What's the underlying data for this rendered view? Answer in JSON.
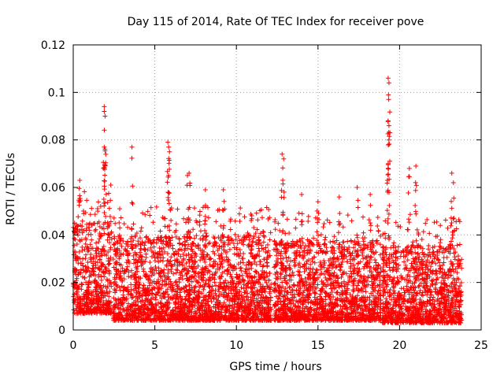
{
  "chart_data": {
    "type": "scatter",
    "title": "Day 115 of 2014, Rate Of TEC Index for receiver pove",
    "xlabel": "GPS time / hours",
    "ylabel": "ROTI / TECUs",
    "xlim": [
      0,
      25
    ],
    "ylim": [
      0,
      0.12
    ],
    "xticks": [
      0,
      5,
      10,
      15,
      20,
      25
    ],
    "xtick_labels": [
      "0",
      "5",
      "10",
      "15",
      "20",
      "25"
    ],
    "yticks": [
      0,
      0.02,
      0.04,
      0.06,
      0.08,
      0.1,
      0.12
    ],
    "ytick_labels": [
      "0",
      "0.02",
      "0.04",
      "0.06",
      "0.08",
      "0.1",
      "0.12"
    ],
    "grid": true,
    "marker": "+",
    "color": "#ff0000",
    "x_range_of_data": [
      0,
      23.8
    ],
    "notable_points": [
      {
        "x": 1.9,
        "y": 0.094
      },
      {
        "x": 1.9,
        "y": 0.092
      },
      {
        "x": 1.95,
        "y": 0.09
      },
      {
        "x": 1.9,
        "y": 0.077
      },
      {
        "x": 3.6,
        "y": 0.077
      },
      {
        "x": 5.8,
        "y": 0.079
      },
      {
        "x": 5.85,
        "y": 0.077
      },
      {
        "x": 5.9,
        "y": 0.075
      },
      {
        "x": 7.1,
        "y": 0.066
      },
      {
        "x": 7.0,
        "y": 0.065
      },
      {
        "x": 12.8,
        "y": 0.074
      },
      {
        "x": 12.9,
        "y": 0.072
      },
      {
        "x": 19.3,
        "y": 0.106
      },
      {
        "x": 19.35,
        "y": 0.104
      },
      {
        "x": 19.3,
        "y": 0.088
      },
      {
        "x": 19.35,
        "y": 0.086
      },
      {
        "x": 19.3,
        "y": 0.07
      },
      {
        "x": 20.6,
        "y": 0.068
      },
      {
        "x": 21.0,
        "y": 0.069
      },
      {
        "x": 23.2,
        "y": 0.066
      },
      {
        "x": 23.3,
        "y": 0.062
      },
      {
        "x": 0.4,
        "y": 0.063
      },
      {
        "x": 2.3,
        "y": 0.061
      },
      {
        "x": 9.2,
        "y": 0.059
      },
      {
        "x": 8.1,
        "y": 0.059
      },
      {
        "x": 14.0,
        "y": 0.057
      },
      {
        "x": 15.0,
        "y": 0.054
      },
      {
        "x": 16.3,
        "y": 0.056
      },
      {
        "x": 17.4,
        "y": 0.06
      },
      {
        "x": 18.2,
        "y": 0.057
      },
      {
        "x": 22.5,
        "y": 0.044
      }
    ],
    "segments": [
      {
        "x_start": 0.0,
        "x_end": 2.4,
        "baseline": 0.007,
        "typical_max": 0.045
      },
      {
        "x_start": 2.4,
        "x_end": 12.2,
        "baseline": 0.004,
        "typical_max": 0.04
      },
      {
        "x_start": 12.2,
        "x_end": 18.9,
        "baseline": 0.004,
        "typical_max": 0.038
      },
      {
        "x_start": 18.9,
        "x_end": 23.8,
        "baseline": 0.003,
        "typical_max": 0.036
      }
    ]
  }
}
